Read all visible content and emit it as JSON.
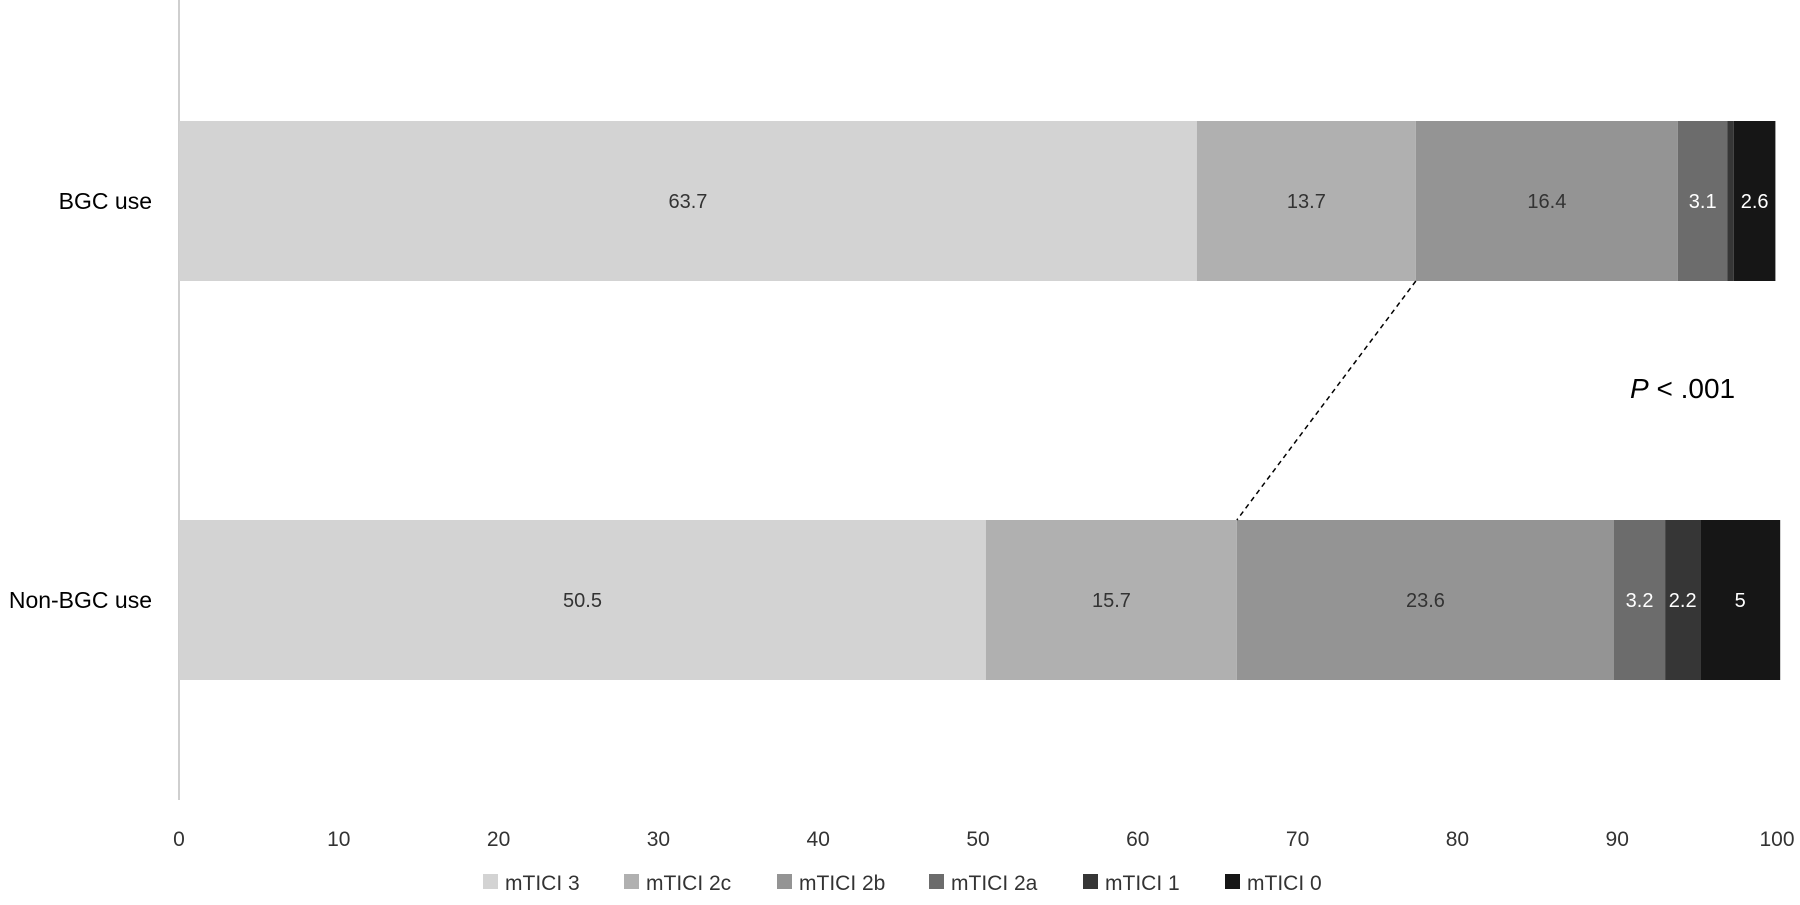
{
  "chart_data": {
    "type": "bar",
    "orientation": "horizontal",
    "stacked": true,
    "categories": [
      "BGC use",
      "Non-BGC use"
    ],
    "series": [
      {
        "name": "mTICI 3",
        "color": "#d3d3d3",
        "values": [
          63.7,
          50.5
        ],
        "labels": [
          "63.7",
          "50.5"
        ]
      },
      {
        "name": "mTICI 2c",
        "color": "#b0b0b0",
        "values": [
          13.7,
          15.7
        ],
        "labels": [
          "13.7",
          "15.7"
        ]
      },
      {
        "name": "mTICI 2b",
        "color": "#949494",
        "values": [
          16.4,
          23.6
        ],
        "labels": [
          "16.4",
          "23.6"
        ]
      },
      {
        "name": "mTICI 2a",
        "color": "#6c6c6c",
        "values": [
          3.1,
          3.2
        ],
        "labels": [
          "3.1",
          "3.2"
        ]
      },
      {
        "name": "mTICI 1",
        "color": "#363636",
        "values": [
          0.4,
          2.2
        ],
        "labels": [
          "0.4",
          "2.2"
        ]
      },
      {
        "name": "mTICI 0",
        "color": "#161616",
        "values": [
          2.6,
          5
        ],
        "labels": [
          "2.6",
          "5"
        ]
      }
    ],
    "xlim": [
      0,
      100
    ],
    "xticks": [
      "0",
      "10",
      "20",
      "30",
      "40",
      "50",
      "60",
      "70",
      "80",
      "90",
      "100"
    ],
    "grid": false,
    "legend_position": "bottom",
    "annotation": {
      "p_symbol": "P",
      "p_text": " < .001"
    },
    "connector": {
      "from_category": "BGC use",
      "to_category": "Non-BGC use",
      "at_series": "mTICI 2c"
    }
  }
}
